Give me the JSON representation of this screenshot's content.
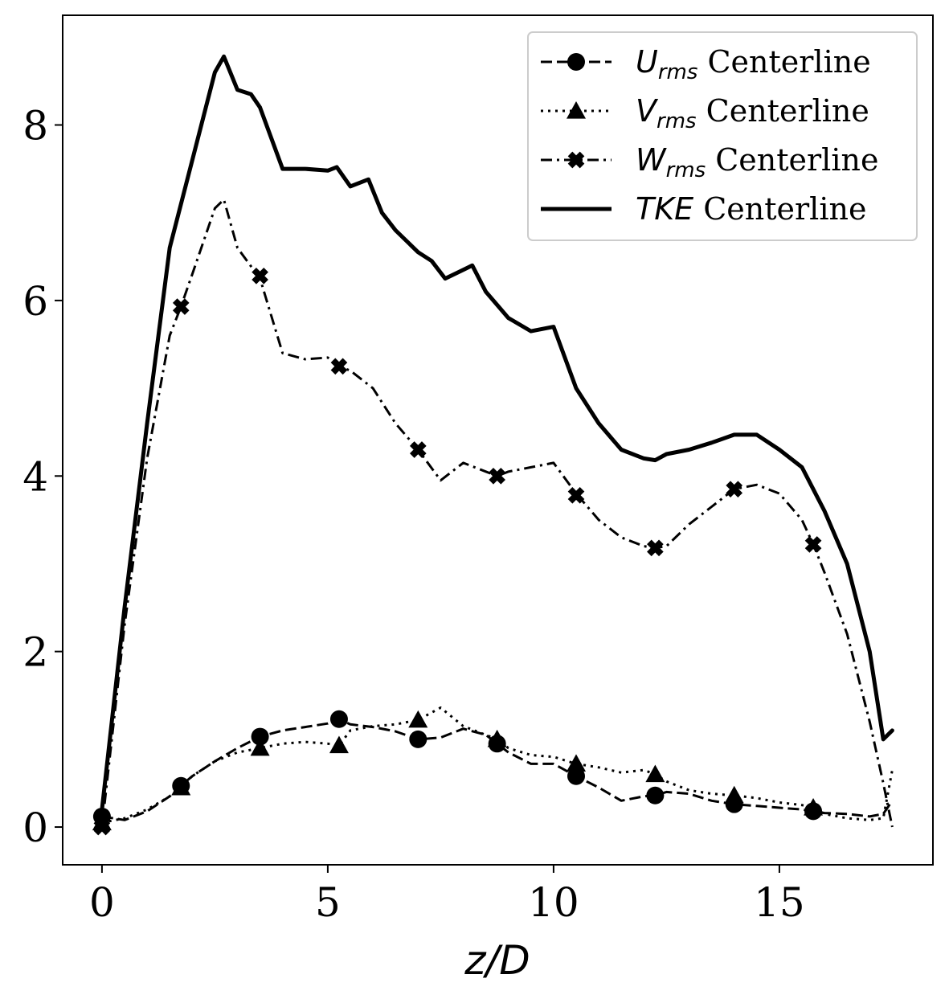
{
  "chart_data": {
    "type": "line",
    "xlabel": "z/D",
    "ylabel": "",
    "xlim": [
      -0.87,
      18.4
    ],
    "ylim": [
      -0.43,
      9.25
    ],
    "xticks": [
      0,
      5,
      10,
      15
    ],
    "yticks": [
      0,
      2,
      4,
      6,
      8
    ],
    "xtick_labels": [
      "0",
      "5",
      "10",
      "15"
    ],
    "ytick_labels": [
      "0",
      "2",
      "4",
      "6",
      "8"
    ],
    "legend_position": "top-right",
    "grid": false,
    "series": [
      {
        "key": "urms",
        "symbol": "U",
        "subscript": "rms",
        "name": "Centerline",
        "linestyle": "dashed",
        "marker": "circle",
        "x": [
          0,
          0.5,
          1,
          1.5,
          1.75,
          2,
          2.5,
          3,
          3.5,
          4,
          4.5,
          5,
          5.25,
          5.5,
          6,
          6.5,
          7,
          7.5,
          8,
          8.5,
          8.75,
          9,
          9.5,
          10,
          10.5,
          11,
          11.5,
          12,
          12.25,
          12.5,
          13,
          13.5,
          14,
          14.5,
          15,
          15.5,
          15.75,
          16,
          16.5,
          17,
          17.3,
          17.5
        ],
        "y": [
          0.12,
          0.08,
          0.18,
          0.35,
          0.47,
          0.58,
          0.75,
          0.9,
          1.03,
          1.1,
          1.14,
          1.18,
          1.23,
          1.17,
          1.14,
          1.09,
          1.0,
          1.02,
          1.12,
          1.05,
          0.95,
          0.85,
          0.72,
          0.72,
          0.58,
          0.45,
          0.3,
          0.35,
          0.36,
          0.4,
          0.38,
          0.3,
          0.26,
          0.24,
          0.22,
          0.2,
          0.18,
          0.16,
          0.15,
          0.12,
          0.15,
          0.3
        ],
        "marker_x": [
          0,
          1.75,
          3.5,
          5.25,
          7,
          8.75,
          10.5,
          12.25,
          14,
          15.75
        ],
        "marker_y": [
          0.12,
          0.47,
          1.03,
          1.23,
          1.0,
          0.95,
          0.58,
          0.36,
          0.26,
          0.18
        ]
      },
      {
        "key": "vrms",
        "symbol": "V",
        "subscript": "rms",
        "name": "Centerline",
        "linestyle": "dotted",
        "marker": "triangle",
        "x": [
          0,
          0.5,
          1,
          1.5,
          1.75,
          2,
          2.5,
          3,
          3.5,
          4,
          4.5,
          5,
          5.25,
          5.5,
          6,
          6.5,
          7,
          7.5,
          8,
          8.5,
          8.75,
          9,
          9.5,
          10,
          10.5,
          11,
          11.5,
          12,
          12.25,
          12.5,
          13,
          13.5,
          14,
          14.5,
          15,
          15.5,
          15.75,
          16,
          16.5,
          17,
          17.3,
          17.5
        ],
        "y": [
          0.05,
          0.1,
          0.2,
          0.35,
          0.45,
          0.58,
          0.75,
          0.85,
          0.9,
          0.95,
          0.97,
          0.95,
          0.93,
          1.1,
          1.15,
          1.17,
          1.22,
          1.36,
          1.15,
          1.05,
          1.0,
          0.9,
          0.82,
          0.8,
          0.72,
          0.68,
          0.62,
          0.65,
          0.6,
          0.52,
          0.42,
          0.38,
          0.36,
          0.33,
          0.28,
          0.25,
          0.22,
          0.15,
          0.1,
          0.08,
          0.1,
          0.65
        ],
        "marker_x": [
          0,
          1.75,
          3.5,
          5.25,
          7,
          8.75,
          10.5,
          12.25,
          14,
          15.75
        ],
        "marker_y": [
          0.05,
          0.45,
          0.9,
          0.93,
          1.22,
          1.0,
          0.72,
          0.6,
          0.36,
          0.22
        ]
      },
      {
        "key": "wrms",
        "symbol": "W",
        "subscript": "rms",
        "name": "Centerline",
        "linestyle": "dashdot",
        "marker": "x",
        "x": [
          0,
          0.5,
          1,
          1.5,
          1.75,
          2,
          2.5,
          2.7,
          3,
          3.5,
          4,
          4.5,
          5,
          5.25,
          5.5,
          6,
          6.5,
          7,
          7.5,
          8,
          8.5,
          8.75,
          9,
          9.5,
          10,
          10.5,
          11,
          11.5,
          12,
          12.25,
          12.5,
          13,
          13.5,
          14,
          14.5,
          15,
          15.5,
          15.75,
          16,
          16.5,
          17,
          17.3,
          17.5
        ],
        "y": [
          0.0,
          2.3,
          4.2,
          5.6,
          5.93,
          6.3,
          7.05,
          7.15,
          6.6,
          6.25,
          5.4,
          5.33,
          5.35,
          5.25,
          5.2,
          5.0,
          4.6,
          4.3,
          3.95,
          4.15,
          4.05,
          4.0,
          4.05,
          4.1,
          4.15,
          3.8,
          3.5,
          3.3,
          3.2,
          3.18,
          3.2,
          3.45,
          3.65,
          3.85,
          3.9,
          3.8,
          3.5,
          3.22,
          2.9,
          2.2,
          1.2,
          0.5,
          0.0
        ],
        "marker_x": [
          0,
          1.75,
          3.5,
          5.25,
          7,
          8.75,
          10.5,
          12.25,
          14,
          15.75
        ],
        "marker_y": [
          0.0,
          5.93,
          6.28,
          5.25,
          4.3,
          4.0,
          3.78,
          3.18,
          3.85,
          3.22
        ]
      },
      {
        "key": "tke",
        "symbol": "TKE",
        "subscript": "",
        "name": "Centerline",
        "linestyle": "solid",
        "marker": "none",
        "x": [
          0,
          0.5,
          1,
          1.5,
          2,
          2.5,
          2.7,
          3,
          3.3,
          3.5,
          4,
          4.5,
          5,
          5.2,
          5.5,
          5.9,
          6.2,
          6.5,
          7,
          7.3,
          7.6,
          8,
          8.2,
          8.5,
          9,
          9.5,
          10,
          10.5,
          11,
          11.5,
          12,
          12.25,
          12.5,
          13,
          13.5,
          14,
          14.5,
          15,
          15.5,
          16,
          16.5,
          17,
          17.3,
          17.5
        ],
        "y": [
          0.2,
          2.5,
          4.6,
          6.6,
          7.6,
          8.6,
          8.78,
          8.4,
          8.35,
          8.2,
          7.5,
          7.5,
          7.48,
          7.52,
          7.3,
          7.38,
          7.0,
          6.8,
          6.55,
          6.45,
          6.25,
          6.35,
          6.4,
          6.1,
          5.8,
          5.65,
          5.7,
          5.0,
          4.6,
          4.3,
          4.2,
          4.18,
          4.25,
          4.3,
          4.38,
          4.47,
          4.47,
          4.3,
          4.1,
          3.6,
          3.0,
          2.0,
          1.0,
          1.1
        ],
        "marker_x": [],
        "marker_y": []
      }
    ]
  }
}
